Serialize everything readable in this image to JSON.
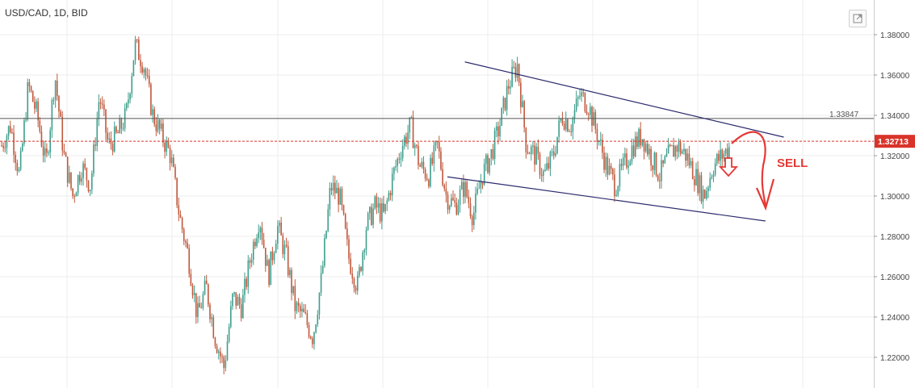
{
  "header": {
    "title": "USD/CAD, 1D, BID"
  },
  "toolbar": {
    "expand_icon": "expand-icon"
  },
  "chart_data": {
    "type": "candlestick",
    "title": "USD/CAD, 1D, BID",
    "ylim": [
      1.205,
      1.39
    ],
    "y_ticks": [
      "1.38000",
      "1.36000",
      "1.34000",
      "1.32000",
      "1.30000",
      "1.28000",
      "1.26000",
      "1.24000",
      "1.22000"
    ],
    "grid": true,
    "price_path": [
      1.325,
      1.335,
      1.31,
      1.355,
      1.34,
      1.315,
      1.36,
      1.32,
      1.3,
      1.315,
      1.305,
      1.35,
      1.325,
      1.33,
      1.34,
      1.375,
      1.365,
      1.34,
      1.33,
      1.32,
      1.29,
      1.27,
      1.24,
      1.255,
      1.23,
      1.215,
      1.25,
      1.245,
      1.27,
      1.29,
      1.26,
      1.285,
      1.27,
      1.245,
      1.24,
      1.23,
      1.26,
      1.305,
      1.3,
      1.27,
      1.255,
      1.285,
      1.295,
      1.29,
      1.31,
      1.325,
      1.335,
      1.315,
      1.31,
      1.325,
      1.3,
      1.295,
      1.305,
      1.29,
      1.31,
      1.32,
      1.335,
      1.355,
      1.365,
      1.325,
      1.32,
      1.31,
      1.32,
      1.34,
      1.335,
      1.35,
      1.345,
      1.33,
      1.315,
      1.305,
      1.315,
      1.325,
      1.33,
      1.32,
      1.31,
      1.32,
      1.325,
      1.32,
      1.31,
      1.3,
      1.315,
      1.32,
      1.325
    ],
    "price_lines": [
      {
        "label": "1.33847",
        "value": 1.33847,
        "color": "#555555",
        "style": "solid"
      },
      {
        "label": "1.32713",
        "value": 1.32713,
        "color": "#d9342a",
        "style": "dashed"
      }
    ],
    "annotations": [
      {
        "type": "trendline",
        "name": "channel-upper",
        "from": [
          0.532,
          1.3665
        ],
        "to": [
          0.897,
          1.3292
        ]
      },
      {
        "type": "trendline",
        "name": "channel-lower",
        "from": [
          0.512,
          1.3095
        ],
        "to": [
          0.876,
          1.2876
        ]
      },
      {
        "type": "text",
        "text": "SELL",
        "color": "#e53935"
      }
    ],
    "colors": {
      "up": "#3f9e8c",
      "down": "#c0593d",
      "label_bg": "#d9342a",
      "sell": "#e53935",
      "trend": "#2c2c6e",
      "grid": "#ececec"
    }
  }
}
